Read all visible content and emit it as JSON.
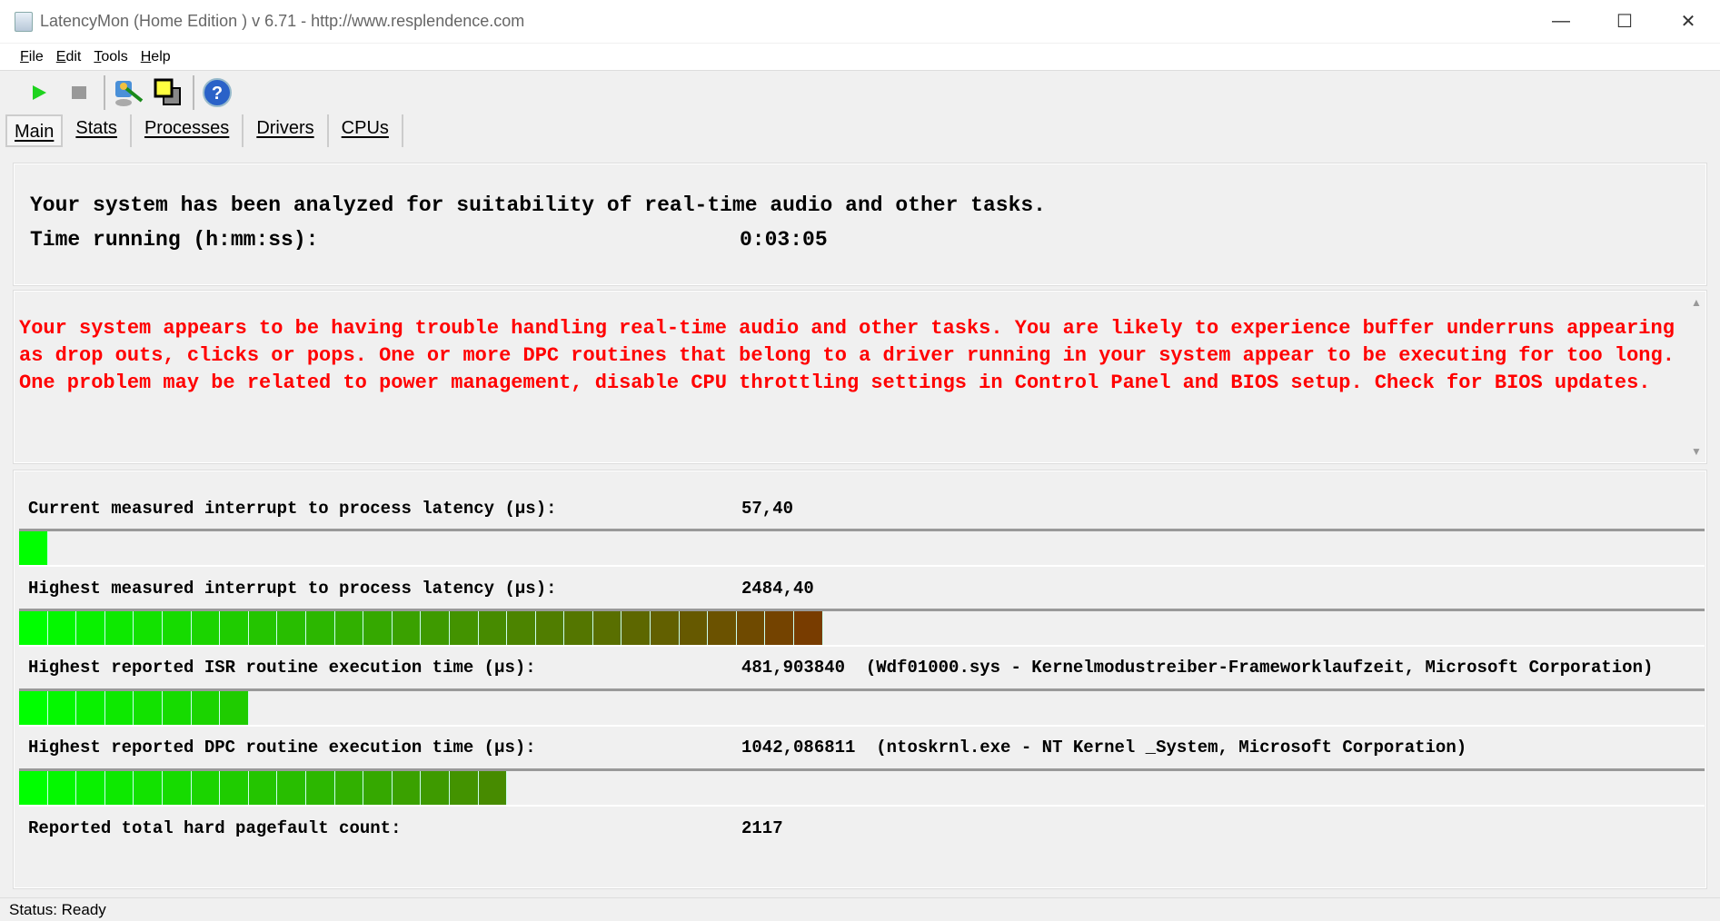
{
  "window": {
    "title": "LatencyMon  (Home Edition )  v 6.71 - http://www.resplendence.com",
    "minimize": "—",
    "maximize": "☐",
    "close": "✕"
  },
  "menu": [
    {
      "key": "F",
      "rest": "ile"
    },
    {
      "key": "E",
      "rest": "dit"
    },
    {
      "key": "T",
      "rest": "ools"
    },
    {
      "key": "H",
      "rest": "elp"
    }
  ],
  "toolbar": {
    "icons": [
      "play-icon",
      "stop-icon",
      "monitor-wrench-icon",
      "windows-icon",
      "help-icon"
    ]
  },
  "tabs": [
    "Main",
    "Stats",
    "Processes",
    "Drivers",
    "CPUs"
  ],
  "summary": {
    "line1": "Your system has been analyzed for suitability of real-time audio and other tasks.",
    "time_label": "Time running (h:mm:ss):",
    "time_value": "0:03:05"
  },
  "verdict": {
    "text": "Your system appears to be having trouble handling real-time audio and other tasks. You are likely to experience buffer underruns appearing as drop outs, clicks or pops. One or more DPC routines that belong to a driver running in your system appear to be executing for too long. One problem may be related to power management, disable CPU throttling settings in Control Panel and BIOS setup. Check for BIOS updates.",
    "color": "#ff0000"
  },
  "metrics": [
    {
      "label": "Current measured interrupt to process latency (µs):",
      "value": "57,40",
      "bar_fraction": 0.013
    },
    {
      "label": "Highest measured interrupt to process latency (µs):",
      "value": "2484,40",
      "detail": "",
      "bar_fraction": 0.474
    },
    {
      "label": "Highest reported ISR routine execution time (µs):",
      "value": "481,903840",
      "detail": "(Wdf01000.sys - Kernelmodustreiber-Frameworklaufzeit, Microsoft Corporation)",
      "bar_fraction": 0.137
    },
    {
      "label": "Highest reported DPC routine execution time (µs):",
      "value": "1042,086811",
      "detail": "(ntoskrnl.exe - NT Kernel _System, Microsoft Corporation)",
      "bar_fraction": 0.294
    },
    {
      "label": "Reported total hard pagefault count:",
      "value": "2117"
    }
  ],
  "status": "Status: Ready"
}
